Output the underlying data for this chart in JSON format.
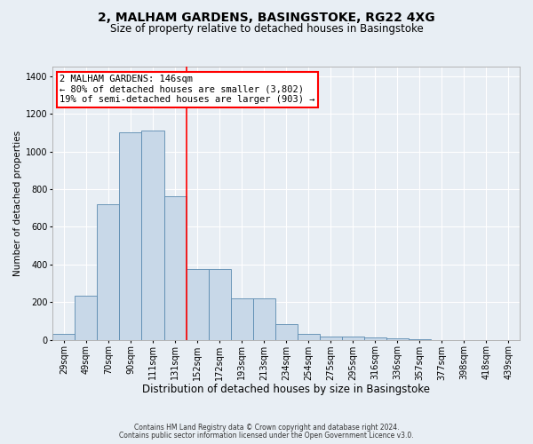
{
  "title": "2, MALHAM GARDENS, BASINGSTOKE, RG22 4XG",
  "subtitle": "Size of property relative to detached houses in Basingstoke",
  "xlabel": "Distribution of detached houses by size in Basingstoke",
  "ylabel": "Number of detached properties",
  "categories": [
    "29sqm",
    "49sqm",
    "70sqm",
    "90sqm",
    "111sqm",
    "131sqm",
    "152sqm",
    "172sqm",
    "193sqm",
    "213sqm",
    "234sqm",
    "254sqm",
    "275sqm",
    "295sqm",
    "316sqm",
    "336sqm",
    "357sqm",
    "377sqm",
    "398sqm",
    "418sqm",
    "439sqm"
  ],
  "values": [
    30,
    235,
    720,
    1100,
    1110,
    760,
    375,
    375,
    220,
    220,
    85,
    30,
    20,
    20,
    15,
    10,
    5,
    0,
    0,
    0,
    0
  ],
  "bar_color": "#c8d8e8",
  "bar_edge_color": "#5a8ab0",
  "red_line_x": 5.5,
  "ylim": [
    0,
    1450
  ],
  "yticks": [
    0,
    200,
    400,
    600,
    800,
    1000,
    1200,
    1400
  ],
  "annotation_title": "2 MALHAM GARDENS: 146sqm",
  "annotation_line1": "← 80% of detached houses are smaller (3,802)",
  "annotation_line2": "19% of semi-detached houses are larger (903) →",
  "footer1": "Contains HM Land Registry data © Crown copyright and database right 2024.",
  "footer2": "Contains public sector information licensed under the Open Government Licence v3.0.",
  "bg_color": "#e8eef4",
  "plot_bg_color": "#e8eef4",
  "grid_color": "#ffffff",
  "title_fontsize": 10,
  "subtitle_fontsize": 8.5,
  "xlabel_fontsize": 8.5,
  "ylabel_fontsize": 7.5,
  "tick_fontsize": 7,
  "annotation_fontsize": 7.5,
  "footer_fontsize": 5.5
}
